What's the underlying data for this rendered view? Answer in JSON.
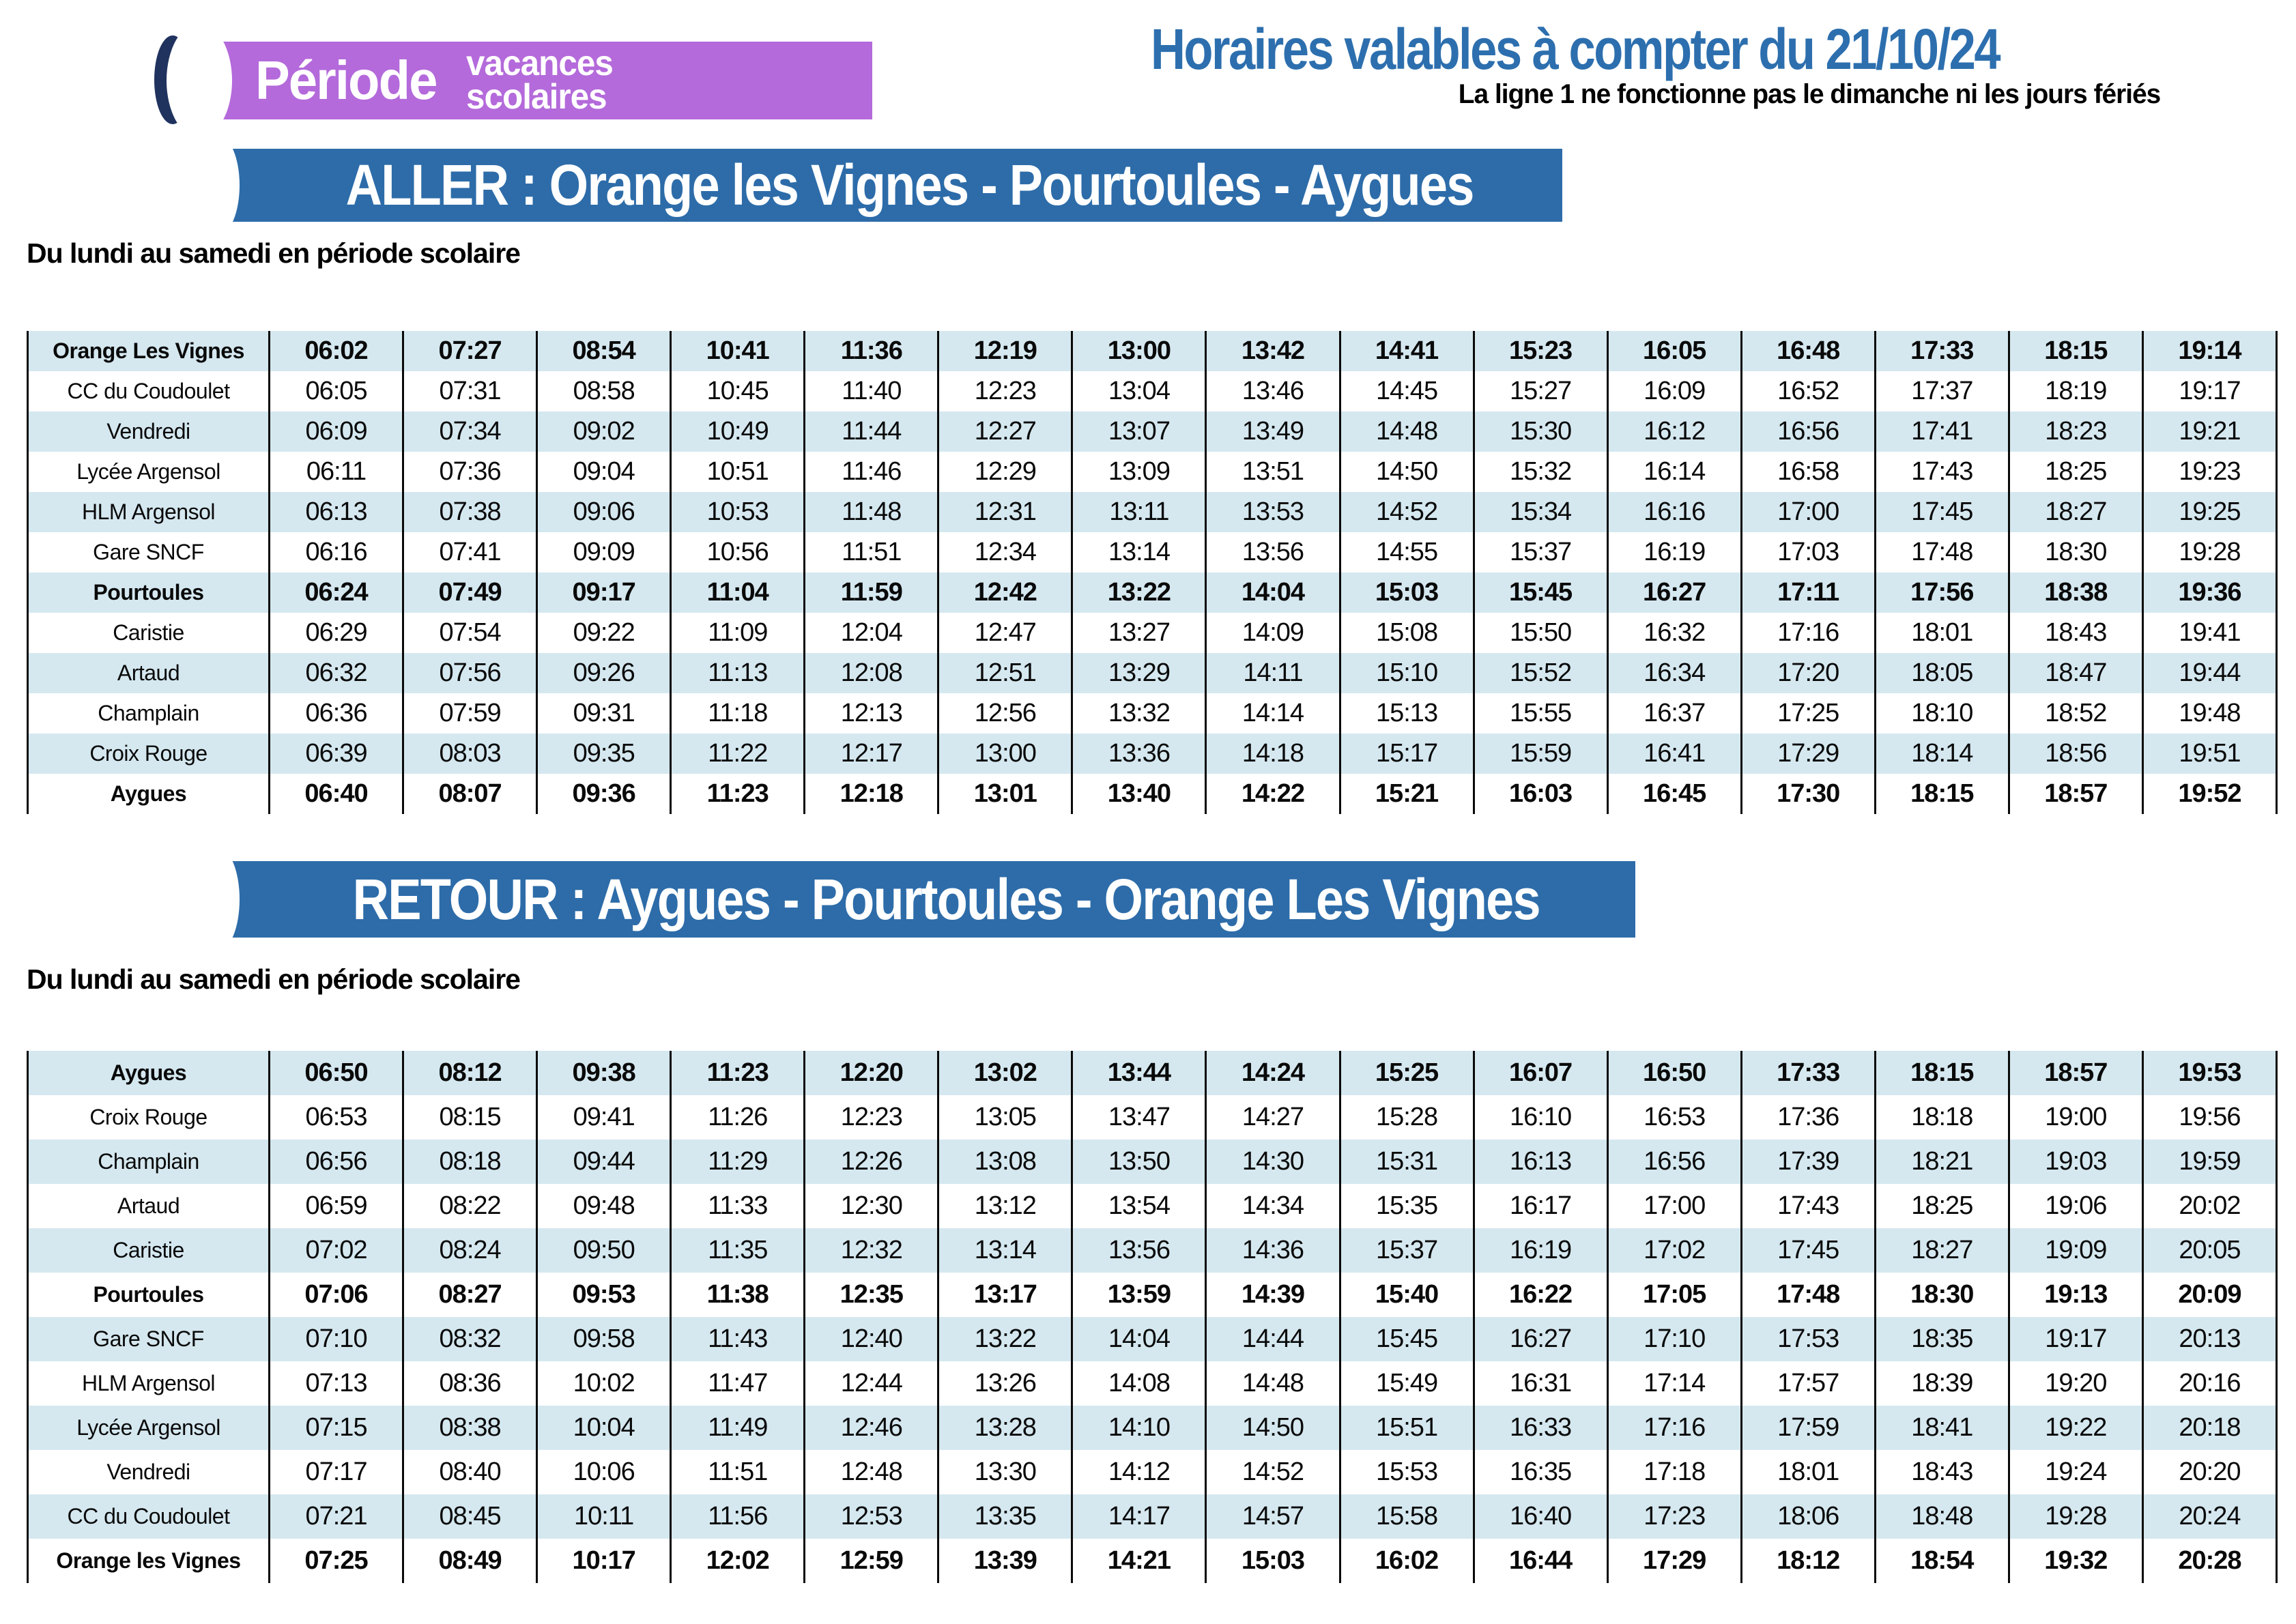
{
  "colors": {
    "purple": "#b46adb",
    "navy": "#20335f",
    "banner_blue": "#2d6ca9",
    "title_blue": "#2d6fae",
    "row_blue": "#d5e8f0"
  },
  "period_banner": {
    "label": "Période",
    "subline1": "vacances",
    "subline2": "scolaires"
  },
  "validity": {
    "title": "Horaires valables à compter du 21/10/24",
    "note": "La ligne 1 ne fonctionne pas le dimanche ni les jours fériés"
  },
  "aller": {
    "banner": "ALLER : Orange les Vignes - Pourtoules - Aygues",
    "subtitle": "Du lundi au samedi en période scolaire",
    "rows": [
      {
        "stop": "Orange Les Vignes",
        "bold": true,
        "times": [
          "06:02",
          "07:27",
          "08:54",
          "10:41",
          "11:36",
          "12:19",
          "13:00",
          "13:42",
          "14:41",
          "15:23",
          "16:05",
          "16:48",
          "17:33",
          "18:15",
          "19:14"
        ]
      },
      {
        "stop": "CC du Coudoulet",
        "bold": false,
        "times": [
          "06:05",
          "07:31",
          "08:58",
          "10:45",
          "11:40",
          "12:23",
          "13:04",
          "13:46",
          "14:45",
          "15:27",
          "16:09",
          "16:52",
          "17:37",
          "18:19",
          "19:17"
        ]
      },
      {
        "stop": "Vendredi",
        "bold": false,
        "times": [
          "06:09",
          "07:34",
          "09:02",
          "10:49",
          "11:44",
          "12:27",
          "13:07",
          "13:49",
          "14:48",
          "15:30",
          "16:12",
          "16:56",
          "17:41",
          "18:23",
          "19:21"
        ]
      },
      {
        "stop": "Lycée Argensol",
        "bold": false,
        "times": [
          "06:11",
          "07:36",
          "09:04",
          "10:51",
          "11:46",
          "12:29",
          "13:09",
          "13:51",
          "14:50",
          "15:32",
          "16:14",
          "16:58",
          "17:43",
          "18:25",
          "19:23"
        ]
      },
      {
        "stop": "HLM Argensol",
        "bold": false,
        "times": [
          "06:13",
          "07:38",
          "09:06",
          "10:53",
          "11:48",
          "12:31",
          "13:11",
          "13:53",
          "14:52",
          "15:34",
          "16:16",
          "17:00",
          "17:45",
          "18:27",
          "19:25"
        ]
      },
      {
        "stop": "Gare SNCF",
        "bold": false,
        "times": [
          "06:16",
          "07:41",
          "09:09",
          "10:56",
          "11:51",
          "12:34",
          "13:14",
          "13:56",
          "14:55",
          "15:37",
          "16:19",
          "17:03",
          "17:48",
          "18:30",
          "19:28"
        ]
      },
      {
        "stop": "Pourtoules",
        "bold": true,
        "times": [
          "06:24",
          "07:49",
          "09:17",
          "11:04",
          "11:59",
          "12:42",
          "13:22",
          "14:04",
          "15:03",
          "15:45",
          "16:27",
          "17:11",
          "17:56",
          "18:38",
          "19:36"
        ]
      },
      {
        "stop": "Caristie",
        "bold": false,
        "times": [
          "06:29",
          "07:54",
          "09:22",
          "11:09",
          "12:04",
          "12:47",
          "13:27",
          "14:09",
          "15:08",
          "15:50",
          "16:32",
          "17:16",
          "18:01",
          "18:43",
          "19:41"
        ]
      },
      {
        "stop": "Artaud",
        "bold": false,
        "times": [
          "06:32",
          "07:56",
          "09:26",
          "11:13",
          "12:08",
          "12:51",
          "13:29",
          "14:11",
          "15:10",
          "15:52",
          "16:34",
          "17:20",
          "18:05",
          "18:47",
          "19:44"
        ]
      },
      {
        "stop": "Champlain",
        "bold": false,
        "times": [
          "06:36",
          "07:59",
          "09:31",
          "11:18",
          "12:13",
          "12:56",
          "13:32",
          "14:14",
          "15:13",
          "15:55",
          "16:37",
          "17:25",
          "18:10",
          "18:52",
          "19:48"
        ]
      },
      {
        "stop": "Croix Rouge",
        "bold": false,
        "times": [
          "06:39",
          "08:03",
          "09:35",
          "11:22",
          "12:17",
          "13:00",
          "13:36",
          "14:18",
          "15:17",
          "15:59",
          "16:41",
          "17:29",
          "18:14",
          "18:56",
          "19:51"
        ]
      },
      {
        "stop": "Aygues",
        "bold": true,
        "times": [
          "06:40",
          "08:07",
          "09:36",
          "11:23",
          "12:18",
          "13:01",
          "13:40",
          "14:22",
          "15:21",
          "16:03",
          "16:45",
          "17:30",
          "18:15",
          "18:57",
          "19:52"
        ]
      }
    ]
  },
  "retour": {
    "banner": "RETOUR : Aygues - Pourtoules - Orange Les Vignes",
    "subtitle": "Du lundi au samedi en période scolaire",
    "rows": [
      {
        "stop": "Aygues",
        "bold": true,
        "times": [
          "06:50",
          "08:12",
          "09:38",
          "11:23",
          "12:20",
          "13:02",
          "13:44",
          "14:24",
          "15:25",
          "16:07",
          "16:50",
          "17:33",
          "18:15",
          "18:57",
          "19:53"
        ]
      },
      {
        "stop": "Croix Rouge",
        "bold": false,
        "times": [
          "06:53",
          "08:15",
          "09:41",
          "11:26",
          "12:23",
          "13:05",
          "13:47",
          "14:27",
          "15:28",
          "16:10",
          "16:53",
          "17:36",
          "18:18",
          "19:00",
          "19:56"
        ]
      },
      {
        "stop": "Champlain",
        "bold": false,
        "times": [
          "06:56",
          "08:18",
          "09:44",
          "11:29",
          "12:26",
          "13:08",
          "13:50",
          "14:30",
          "15:31",
          "16:13",
          "16:56",
          "17:39",
          "18:21",
          "19:03",
          "19:59"
        ]
      },
      {
        "stop": "Artaud",
        "bold": false,
        "times": [
          "06:59",
          "08:22",
          "09:48",
          "11:33",
          "12:30",
          "13:12",
          "13:54",
          "14:34",
          "15:35",
          "16:17",
          "17:00",
          "17:43",
          "18:25",
          "19:06",
          "20:02"
        ]
      },
      {
        "stop": "Caristie",
        "bold": false,
        "times": [
          "07:02",
          "08:24",
          "09:50",
          "11:35",
          "12:32",
          "13:14",
          "13:56",
          "14:36",
          "15:37",
          "16:19",
          "17:02",
          "17:45",
          "18:27",
          "19:09",
          "20:05"
        ]
      },
      {
        "stop": "Pourtoules",
        "bold": true,
        "times": [
          "07:06",
          "08:27",
          "09:53",
          "11:38",
          "12:35",
          "13:17",
          "13:59",
          "14:39",
          "15:40",
          "16:22",
          "17:05",
          "17:48",
          "18:30",
          "19:13",
          "20:09"
        ]
      },
      {
        "stop": "Gare SNCF",
        "bold": false,
        "times": [
          "07:10",
          "08:32",
          "09:58",
          "11:43",
          "12:40",
          "13:22",
          "14:04",
          "14:44",
          "15:45",
          "16:27",
          "17:10",
          "17:53",
          "18:35",
          "19:17",
          "20:13"
        ]
      },
      {
        "stop": "HLM  Argensol",
        "bold": false,
        "times": [
          "07:13",
          "08:36",
          "10:02",
          "11:47",
          "12:44",
          "13:26",
          "14:08",
          "14:48",
          "15:49",
          "16:31",
          "17:14",
          "17:57",
          "18:39",
          "19:20",
          "20:16"
        ]
      },
      {
        "stop": "Lycée Argensol",
        "bold": false,
        "times": [
          "07:15",
          "08:38",
          "10:04",
          "11:49",
          "12:46",
          "13:28",
          "14:10",
          "14:50",
          "15:51",
          "16:33",
          "17:16",
          "17:59",
          "18:41",
          "19:22",
          "20:18"
        ]
      },
      {
        "stop": "Vendredi",
        "bold": false,
        "times": [
          "07:17",
          "08:40",
          "10:06",
          "11:51",
          "12:48",
          "13:30",
          "14:12",
          "14:52",
          "15:53",
          "16:35",
          "17:18",
          "18:01",
          "18:43",
          "19:24",
          "20:20"
        ]
      },
      {
        "stop": "CC du Coudoulet",
        "bold": false,
        "times": [
          "07:21",
          "08:45",
          "10:11",
          "11:56",
          "12:53",
          "13:35",
          "14:17",
          "14:57",
          "15:58",
          "16:40",
          "17:23",
          "18:06",
          "18:48",
          "19:28",
          "20:24"
        ]
      },
      {
        "stop": "Orange les Vignes",
        "bold": true,
        "times": [
          "07:25",
          "08:49",
          "10:17",
          "12:02",
          "12:59",
          "13:39",
          "14:21",
          "15:03",
          "16:02",
          "16:44",
          "17:29",
          "18:12",
          "18:54",
          "19:32",
          "20:28"
        ]
      }
    ]
  }
}
